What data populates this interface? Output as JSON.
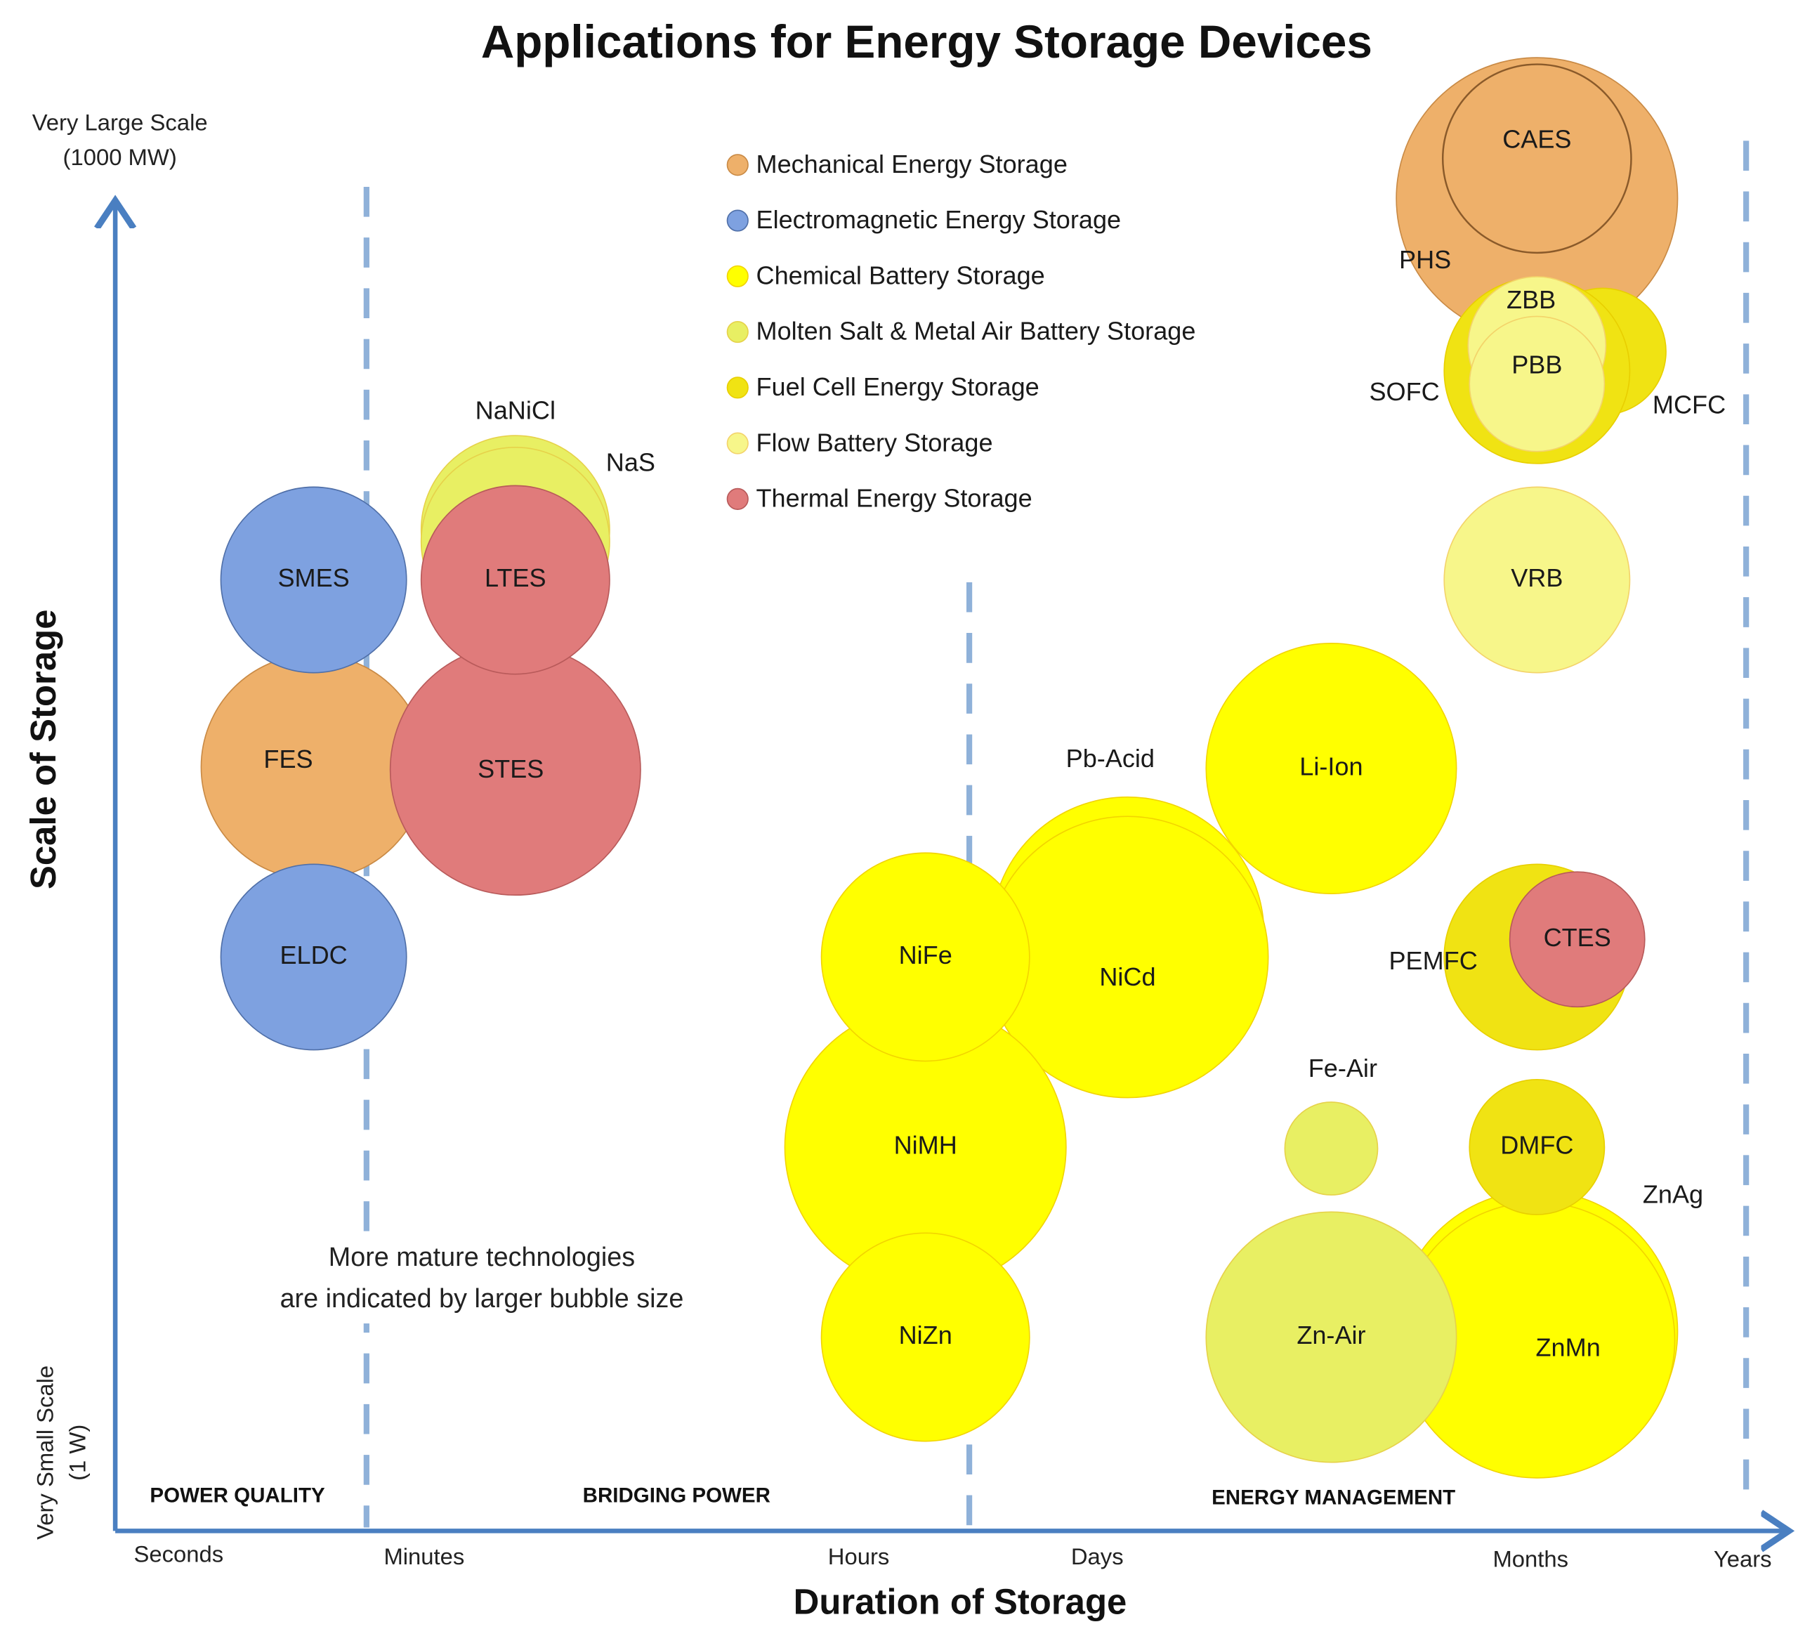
{
  "chart_data": {
    "type": "bubble",
    "title": "Applications for Energy Storage Devices",
    "xlabel": "Duration of Storage",
    "ylabel": "Scale of Storage",
    "x_ticks": [
      "Seconds",
      "Minutes",
      "Hours",
      "Days",
      "Months",
      "Years"
    ],
    "y_top_label": [
      "Very Large Scale",
      "(1000 MW)"
    ],
    "y_bottom_label": [
      "Very Small Scale",
      "(1 W)"
    ],
    "y_units": "log10 W",
    "ylim": [
      0,
      9
    ],
    "regions": [
      "POWER QUALITY",
      "BRIDGING POWER",
      "ENERGY MANAGEMENT"
    ],
    "annotation": [
      "More mature technologies",
      "are indicated by larger bubble size"
    ],
    "legend_position": "top-center",
    "categories": [
      {
        "key": "mech",
        "name": "Mechanical Energy Storage",
        "color": "#eeb06a"
      },
      {
        "key": "em",
        "name": "Electromagnetic Energy Storage",
        "color": "#7ea1e0"
      },
      {
        "key": "chem",
        "name": "Chemical Battery Storage",
        "color": "#ffff00"
      },
      {
        "key": "molten",
        "name": "Molten Salt & Metal Air Battery Storage",
        "color": "#e8ef63"
      },
      {
        "key": "fuel",
        "name": "Fuel Cell Energy Storage",
        "color": "#f0e313"
      },
      {
        "key": "flow",
        "name": "Flow Battery Storage",
        "color": "#f7f68a"
      },
      {
        "key": "thermal",
        "name": "Thermal Energy Storage",
        "color": "#e07b7b"
      }
    ],
    "bubbles": [
      {
        "name": "PHS",
        "cat": "mech",
        "x": 4.03,
        "y": 8.67,
        "size": 1.0
      },
      {
        "name": "CAES",
        "cat": "mech",
        "x": 4.03,
        "y": 8.94,
        "size": 0.67
      },
      {
        "name": "MCFC",
        "cat": "fuel",
        "x": 4.34,
        "y": 7.63,
        "size": 0.45
      },
      {
        "name": "SOFC",
        "cat": "fuel",
        "x": 4.03,
        "y": 7.5,
        "size": 0.66
      },
      {
        "name": "ZBB",
        "cat": "flow",
        "x": 4.03,
        "y": 7.67,
        "size": 0.49
      },
      {
        "name": "PBB",
        "cat": "flow",
        "x": 4.03,
        "y": 7.41,
        "size": 0.48
      },
      {
        "name": "VRB",
        "cat": "flow",
        "x": 4.03,
        "y": 6.08,
        "size": 0.66
      },
      {
        "name": "Li-Ion",
        "cat": "chem",
        "x": 3.54,
        "y": 4.8,
        "size": 0.89
      },
      {
        "name": "Pb-Acid",
        "cat": "chem",
        "x": 3.07,
        "y": 3.68,
        "size": 0.97
      },
      {
        "name": "NiCd",
        "cat": "chem",
        "x": 3.07,
        "y": 3.52,
        "size": 1.0
      },
      {
        "name": "NiMH",
        "cat": "chem",
        "x": 2.28,
        "y": 2.23,
        "size": 1.0
      },
      {
        "name": "NiZn",
        "cat": "chem",
        "x": 2.28,
        "y": 0.94,
        "size": 0.74
      },
      {
        "name": "NiFe",
        "cat": "chem",
        "x": 2.28,
        "y": 3.52,
        "size": 0.74
      },
      {
        "name": "FES",
        "cat": "mech",
        "x": 0.55,
        "y": 4.81,
        "size": 0.8
      },
      {
        "name": "SMES",
        "cat": "em",
        "x": 0.55,
        "y": 6.08,
        "size": 0.66
      },
      {
        "name": "ELDC",
        "cat": "em",
        "x": 0.55,
        "y": 3.52,
        "size": 0.66
      },
      {
        "name": "NaNiCl",
        "cat": "molten",
        "x": 1.21,
        "y": 6.42,
        "size": 0.67
      },
      {
        "name": "NaS",
        "cat": "molten",
        "x": 1.21,
        "y": 6.34,
        "size": 0.67
      },
      {
        "name": "STES",
        "cat": "thermal",
        "x": 1.21,
        "y": 4.79,
        "size": 0.89
      },
      {
        "name": "LTES",
        "cat": "thermal",
        "x": 1.21,
        "y": 6.08,
        "size": 0.67
      },
      {
        "name": "PEMFC",
        "cat": "fuel",
        "x": 4.03,
        "y": 3.52,
        "size": 0.66
      },
      {
        "name": "CTES",
        "cat": "thermal",
        "x": 4.22,
        "y": 3.64,
        "size": 0.48
      },
      {
        "name": "Fe-Air",
        "cat": "molten",
        "x": 3.54,
        "y": 2.22,
        "size": 0.33
      },
      {
        "name": "ZnAg",
        "cat": "chem",
        "x": 4.03,
        "y": 0.98,
        "size": 1.0
      },
      {
        "name": "ZnMn",
        "cat": "chem",
        "x": 4.03,
        "y": 0.92,
        "size": 0.98
      },
      {
        "name": "DMFC",
        "cat": "fuel",
        "x": 4.03,
        "y": 2.23,
        "size": 0.48
      },
      {
        "name": "Zn-Air",
        "cat": "molten",
        "x": 3.54,
        "y": 0.94,
        "size": 0.89
      }
    ]
  }
}
